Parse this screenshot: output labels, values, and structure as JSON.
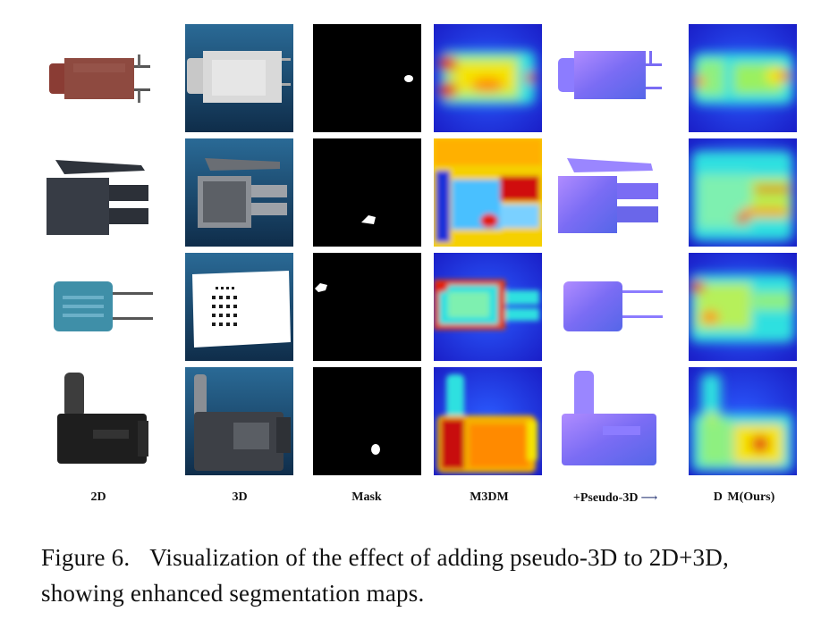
{
  "figure": {
    "columns": [
      {
        "key": "2d",
        "label": "2D"
      },
      {
        "key": "3d",
        "label": "3D"
      },
      {
        "key": "mask",
        "label": "Mask"
      },
      {
        "key": "m3dm",
        "label": "M3DM"
      },
      {
        "key": "pseudo3d",
        "label": "+Pseudo-3D",
        "suffix": "⟶"
      },
      {
        "key": "ours",
        "label": "D  M(Ours)"
      }
    ],
    "rows": [
      "jack-connector",
      "power-connector",
      "potentiometer",
      "dc-plug"
    ],
    "colors": {
      "heat_low": "#1a30d8",
      "heat_mid": "#2fe0e0",
      "heat_warm": "#f5e400",
      "heat_high": "#e31a0e",
      "pseudo3d_surface": "#7f6cff",
      "scan_bg": "#1e4e73"
    }
  },
  "caption": {
    "label": "Figure 6.",
    "text": "Visualization of the effect of adding pseudo-3D to 2D+3D, showing enhanced segmentation maps."
  }
}
